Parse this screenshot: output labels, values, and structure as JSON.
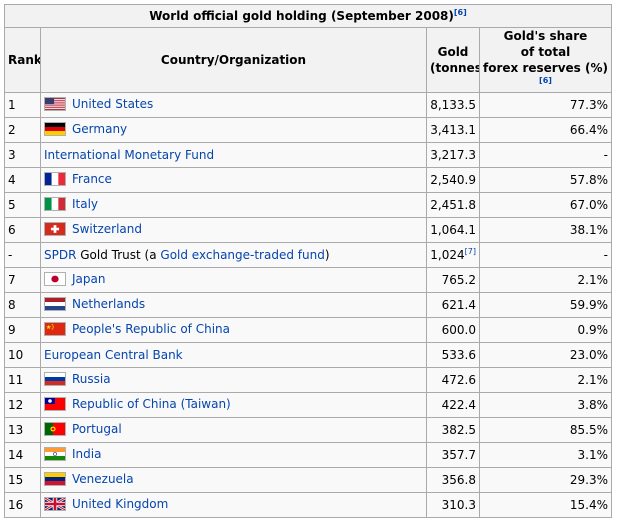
{
  "table": {
    "caption": "World official gold holding (September 2008)",
    "caption_ref": "[6]",
    "headers": {
      "rank": "Rank",
      "country": "Country/Organization",
      "gold_line1": "Gold",
      "gold_line2": "(tonnes)",
      "share_line1": "Gold's share",
      "share_line2": "of total",
      "share_line3": "forex reserves (%)",
      "share_ref": "[6]"
    },
    "rows": [
      {
        "rank": "1",
        "name": "United States",
        "flag": "us-flag",
        "gold": "8,133.5",
        "share": "77.3%"
      },
      {
        "rank": "2",
        "name": "Germany",
        "flag": "germany-flag",
        "gold": "3,413.1",
        "share": "66.4%"
      },
      {
        "rank": "3",
        "name": "International Monetary Fund",
        "flag": "",
        "gold": "3,217.3",
        "share": "-"
      },
      {
        "rank": "4",
        "name": "France",
        "flag": "france-flag",
        "gold": "2,540.9",
        "share": "57.8%"
      },
      {
        "rank": "5",
        "name": "Italy",
        "flag": "italy-flag",
        "gold": "2,451.8",
        "share": "67.0%"
      },
      {
        "rank": "6",
        "name": "Switzerland",
        "flag": "switzerland-flag",
        "gold": "1,064.1",
        "share": "38.1%"
      },
      {
        "rank": "-",
        "name_part1": "SPDR",
        "name_part2": " Gold Trust (a ",
        "name_part3": "Gold exchange-traded fund",
        "name_part4": ")",
        "flag": "",
        "gold": "1,024",
        "gold_ref": "[7]",
        "share": "-"
      },
      {
        "rank": "7",
        "name": "Japan",
        "flag": "japan-flag",
        "gold": "765.2",
        "share": "2.1%"
      },
      {
        "rank": "8",
        "name": "Netherlands",
        "flag": "netherlands-flag",
        "gold": "621.4",
        "share": "59.9%"
      },
      {
        "rank": "9",
        "name": "People's Republic of China",
        "flag": "china-flag",
        "gold": "600.0",
        "share": "0.9%"
      },
      {
        "rank": "10",
        "name": "European Central Bank",
        "flag": "",
        "gold": "533.6",
        "share": "23.0%"
      },
      {
        "rank": "11",
        "name": "Russia",
        "flag": "russia-flag",
        "gold": "472.6",
        "share": "2.1%"
      },
      {
        "rank": "12",
        "name": "Republic of China (Taiwan)",
        "flag": "taiwan-flag",
        "gold": "422.4",
        "share": "3.8%"
      },
      {
        "rank": "13",
        "name": "Portugal",
        "flag": "portugal-flag",
        "gold": "382.5",
        "share": "85.5%"
      },
      {
        "rank": "14",
        "name": "India",
        "flag": "india-flag",
        "gold": "357.7",
        "share": "3.1%"
      },
      {
        "rank": "15",
        "name": "Venezuela",
        "flag": "venezuela-flag",
        "gold": "356.8",
        "share": "29.3%"
      },
      {
        "rank": "16",
        "name": "United Kingdom",
        "flag": "uk-flag",
        "gold": "310.3",
        "share": "15.4%"
      }
    ]
  }
}
